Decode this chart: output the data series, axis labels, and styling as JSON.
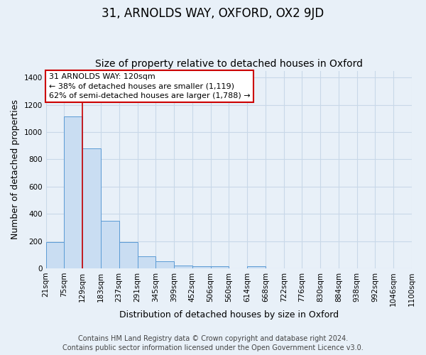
{
  "title": "31, ARNOLDS WAY, OXFORD, OX2 9JD",
  "subtitle": "Size of property relative to detached houses in Oxford",
  "xlabel": "Distribution of detached houses by size in Oxford",
  "ylabel": "Number of detached properties",
  "bin_labels": [
    "21sqm",
    "75sqm",
    "129sqm",
    "183sqm",
    "237sqm",
    "291sqm",
    "345sqm",
    "399sqm",
    "452sqm",
    "506sqm",
    "560sqm",
    "614sqm",
    "668sqm",
    "722sqm",
    "776sqm",
    "830sqm",
    "884sqm",
    "938sqm",
    "992sqm",
    "1046sqm",
    "1100sqm"
  ],
  "bar_heights": [
    190,
    1115,
    880,
    350,
    190,
    90,
    50,
    20,
    15,
    15,
    0,
    15,
    0,
    0,
    0,
    0,
    0,
    0,
    0,
    0
  ],
  "bar_color": "#c9ddf2",
  "bar_edge_color": "#5b9bd5",
  "annotation_text": "31 ARNOLDS WAY: 120sqm\n← 38% of detached houses are smaller (1,119)\n62% of semi-detached houses are larger (1,788) →",
  "annotation_box_color": "#ffffff",
  "annotation_box_edge": "#cc0000",
  "ylim": [
    0,
    1450
  ],
  "yticks": [
    0,
    200,
    400,
    600,
    800,
    1000,
    1200,
    1400
  ],
  "footer_line1": "Contains HM Land Registry data © Crown copyright and database right 2024.",
  "footer_line2": "Contains public sector information licensed under the Open Government Licence v3.0.",
  "background_color": "#e8f0f8",
  "plot_background": "#e8f0f8",
  "grid_color": "#c8d8e8",
  "title_fontsize": 12,
  "subtitle_fontsize": 10,
  "axis_label_fontsize": 9,
  "tick_fontsize": 7.5,
  "footer_fontsize": 7
}
